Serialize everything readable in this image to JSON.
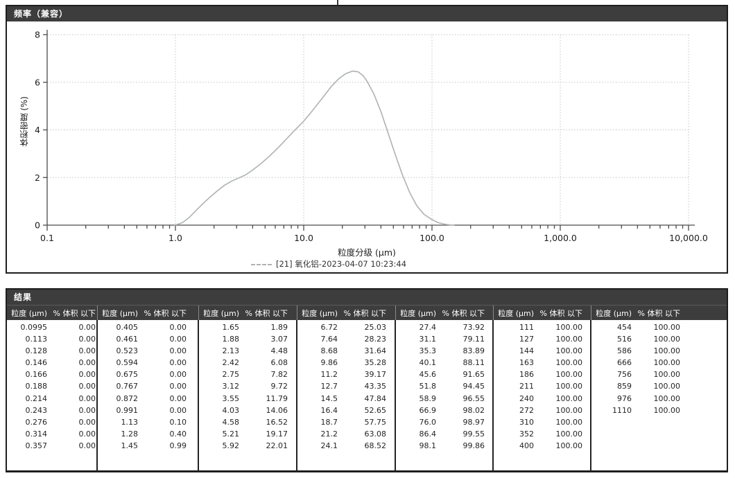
{
  "chart_panel": {
    "title": "频率（兼容）",
    "ylabel": "体积密度 (%)",
    "xlabel": "粒度分级 (μm)",
    "legend_label": "[21] 氧化铝-2023-04-07 10:23:44"
  },
  "chart_data": {
    "type": "line",
    "title": "频率（兼容）",
    "xlabel": "粒度分级 (μm)",
    "ylabel": "体积密度 (%)",
    "x_scale": "log",
    "xlim": [
      0.1,
      10000
    ],
    "ylim": [
      0,
      8
    ],
    "grid": true,
    "legend_position": "bottom",
    "y_ticks": [
      0,
      2,
      4,
      6,
      8
    ],
    "x_ticks": [
      0.1,
      1,
      10,
      100,
      1000,
      10000
    ],
    "x_tick_labels": [
      "0.1",
      "1.0",
      "10.0",
      "100.0",
      "1,000.0",
      "10,000.0"
    ],
    "series": [
      {
        "name": "[21] 氧化铝-2023-04-07 10:23:44",
        "color": "#b1b7b1",
        "points": [
          [
            0.98,
            0
          ],
          [
            1.05,
            0.04
          ],
          [
            1.13,
            0.1
          ],
          [
            1.28,
            0.32
          ],
          [
            1.45,
            0.62
          ],
          [
            1.65,
            0.92
          ],
          [
            1.88,
            1.2
          ],
          [
            2.13,
            1.45
          ],
          [
            2.42,
            1.68
          ],
          [
            2.75,
            1.85
          ],
          [
            3.12,
            1.98
          ],
          [
            3.55,
            2.12
          ],
          [
            4.03,
            2.33
          ],
          [
            4.58,
            2.56
          ],
          [
            5.21,
            2.82
          ],
          [
            5.92,
            3.1
          ],
          [
            6.72,
            3.4
          ],
          [
            7.64,
            3.72
          ],
          [
            8.68,
            4.03
          ],
          [
            9.86,
            4.33
          ],
          [
            11.2,
            4.68
          ],
          [
            12.7,
            5.05
          ],
          [
            14.5,
            5.45
          ],
          [
            16.4,
            5.82
          ],
          [
            18.7,
            6.14
          ],
          [
            21.2,
            6.36
          ],
          [
            24.1,
            6.47
          ],
          [
            26.5,
            6.44
          ],
          [
            29,
            6.28
          ],
          [
            31.1,
            6.05
          ],
          [
            35.3,
            5.5
          ],
          [
            40.1,
            4.75
          ],
          [
            45.6,
            3.85
          ],
          [
            51.8,
            2.95
          ],
          [
            58.9,
            2.1
          ],
          [
            66.9,
            1.38
          ],
          [
            76,
            0.82
          ],
          [
            86.4,
            0.46
          ],
          [
            98.1,
            0.26
          ],
          [
            111,
            0.11
          ],
          [
            125,
            0.04
          ],
          [
            140,
            0.01
          ],
          [
            150,
            0
          ]
        ]
      }
    ]
  },
  "results_panel": {
    "title": "结果",
    "col_headers": {
      "size": "粒度 (μm)",
      "pct": "% 体积 以下"
    },
    "groups": [
      [
        [
          "0.0995",
          "0.00"
        ],
        [
          "0.113",
          "0.00"
        ],
        [
          "0.128",
          "0.00"
        ],
        [
          "0.146",
          "0.00"
        ],
        [
          "0.166",
          "0.00"
        ],
        [
          "0.188",
          "0.00"
        ],
        [
          "0.214",
          "0.00"
        ],
        [
          "0.243",
          "0.00"
        ],
        [
          "0.276",
          "0.00"
        ],
        [
          "0.314",
          "0.00"
        ],
        [
          "0.357",
          "0.00"
        ]
      ],
      [
        [
          "0.405",
          "0.00"
        ],
        [
          "0.461",
          "0.00"
        ],
        [
          "0.523",
          "0.00"
        ],
        [
          "0.594",
          "0.00"
        ],
        [
          "0.675",
          "0.00"
        ],
        [
          "0.767",
          "0.00"
        ],
        [
          "0.872",
          "0.00"
        ],
        [
          "0.991",
          "0.00"
        ],
        [
          "1.13",
          "0.10"
        ],
        [
          "1.28",
          "0.40"
        ],
        [
          "1.45",
          "0.99"
        ]
      ],
      [
        [
          "1.65",
          "1.89"
        ],
        [
          "1.88",
          "3.07"
        ],
        [
          "2.13",
          "4.48"
        ],
        [
          "2.42",
          "6.08"
        ],
        [
          "2.75",
          "7.82"
        ],
        [
          "3.12",
          "9.72"
        ],
        [
          "3.55",
          "11.79"
        ],
        [
          "4.03",
          "14.06"
        ],
        [
          "4.58",
          "16.52"
        ],
        [
          "5.21",
          "19.17"
        ],
        [
          "5.92",
          "22.01"
        ]
      ],
      [
        [
          "6.72",
          "25.03"
        ],
        [
          "7.64",
          "28.23"
        ],
        [
          "8.68",
          "31.64"
        ],
        [
          "9.86",
          "35.28"
        ],
        [
          "11.2",
          "39.17"
        ],
        [
          "12.7",
          "43.35"
        ],
        [
          "14.5",
          "47.84"
        ],
        [
          "16.4",
          "52.65"
        ],
        [
          "18.7",
          "57.75"
        ],
        [
          "21.2",
          "63.08"
        ],
        [
          "24.1",
          "68.52"
        ]
      ],
      [
        [
          "27.4",
          "73.92"
        ],
        [
          "31.1",
          "79.11"
        ],
        [
          "35.3",
          "83.89"
        ],
        [
          "40.1",
          "88.11"
        ],
        [
          "45.6",
          "91.65"
        ],
        [
          "51.8",
          "94.45"
        ],
        [
          "58.9",
          "96.55"
        ],
        [
          "66.9",
          "98.02"
        ],
        [
          "76.0",
          "98.97"
        ],
        [
          "86.4",
          "99.55"
        ],
        [
          "98.1",
          "99.86"
        ]
      ],
      [
        [
          "111",
          "100.00"
        ],
        [
          "127",
          "100.00"
        ],
        [
          "144",
          "100.00"
        ],
        [
          "163",
          "100.00"
        ],
        [
          "186",
          "100.00"
        ],
        [
          "211",
          "100.00"
        ],
        [
          "240",
          "100.00"
        ],
        [
          "272",
          "100.00"
        ],
        [
          "310",
          "100.00"
        ],
        [
          "352",
          "100.00"
        ],
        [
          "400",
          "100.00"
        ]
      ],
      [
        [
          "454",
          "100.00"
        ],
        [
          "516",
          "100.00"
        ],
        [
          "586",
          "100.00"
        ],
        [
          "666",
          "100.00"
        ],
        [
          "756",
          "100.00"
        ],
        [
          "859",
          "100.00"
        ],
        [
          "976",
          "100.00"
        ],
        [
          "1110",
          "100.00"
        ]
      ]
    ]
  }
}
